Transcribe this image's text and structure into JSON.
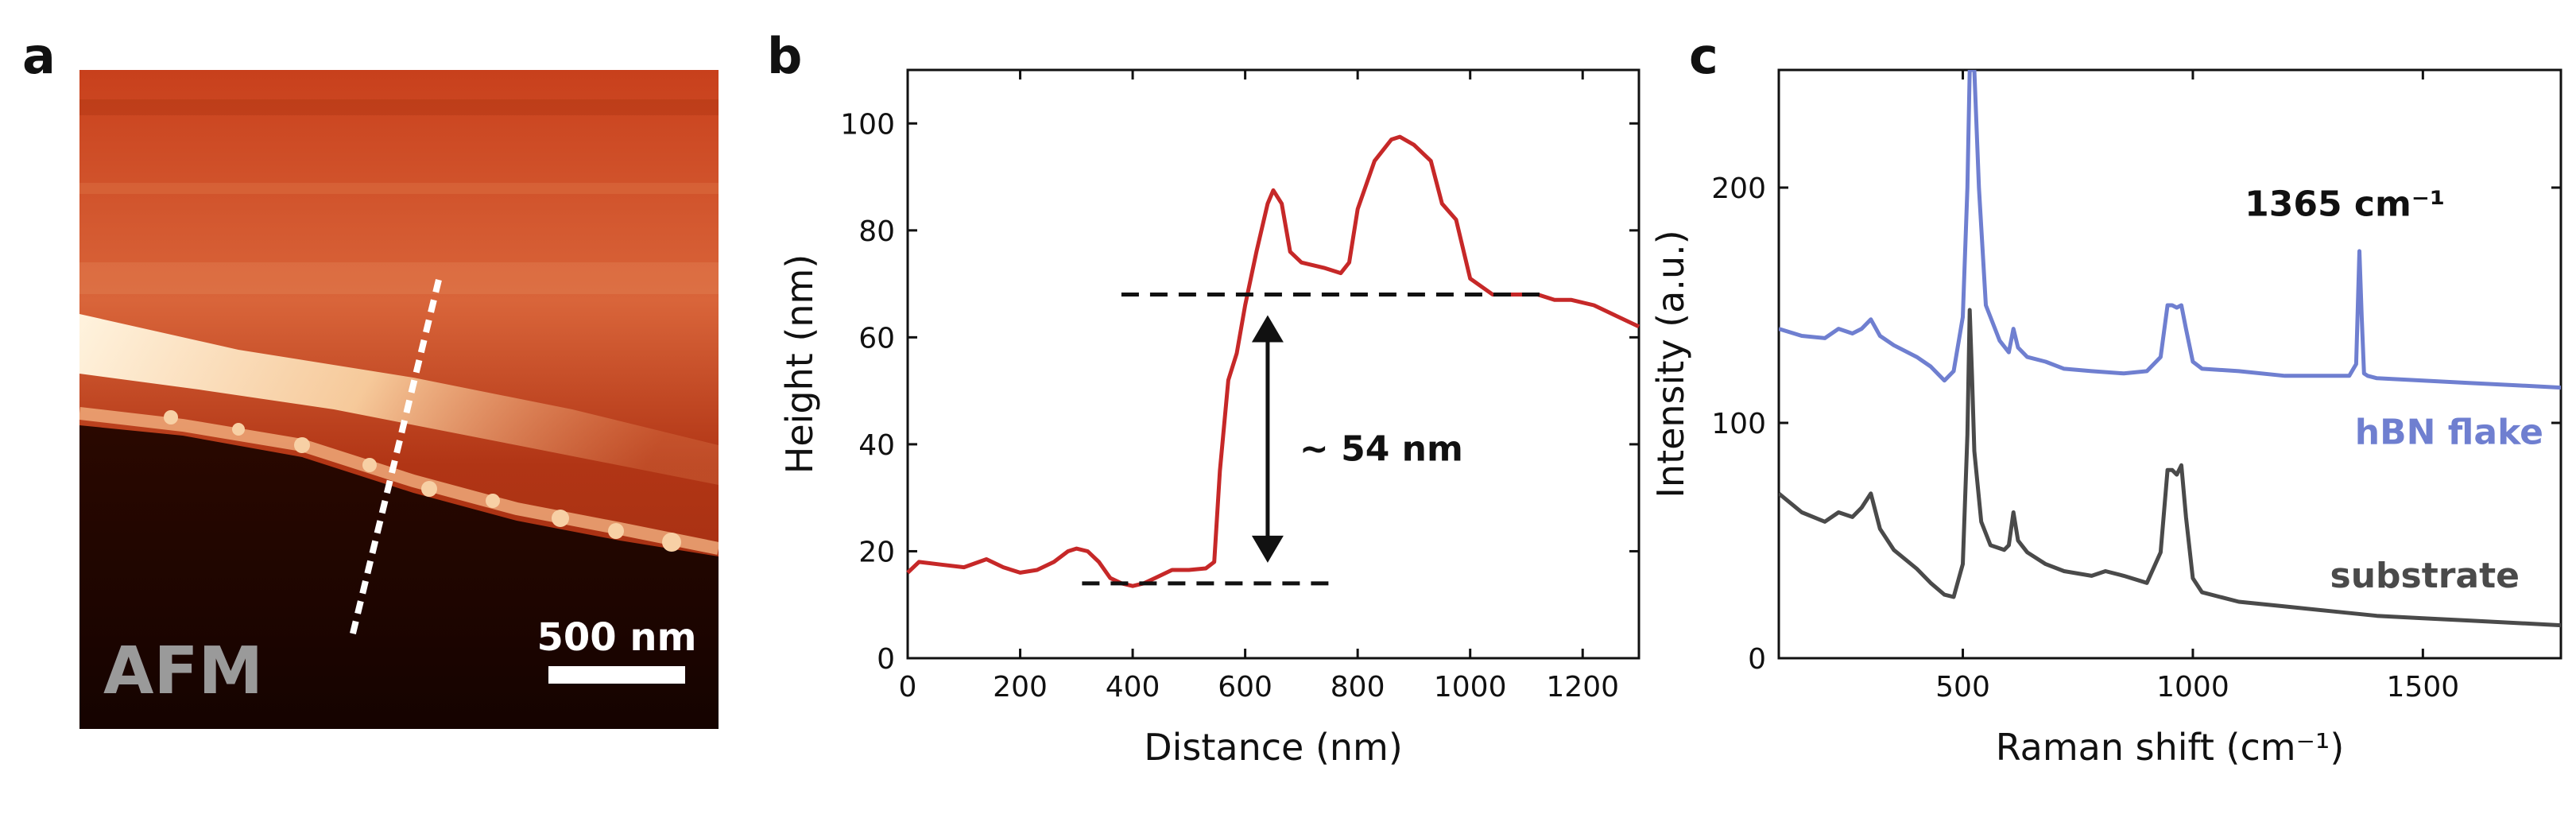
{
  "panels": {
    "a": {
      "label": "a",
      "image_label": "AFM",
      "scalebar_label": "500 nm"
    },
    "b": {
      "label": "b"
    },
    "c": {
      "label": "c"
    }
  },
  "colors": {
    "profile": "#c62828",
    "hbn": "#6f7fd0",
    "substrate": "#4a4a4a",
    "afm_dark": "#1a0500",
    "afm_orange": "#c0421a",
    "afm_light": "#fff0d8"
  },
  "chart_data": [
    {
      "type": "line",
      "panel": "b",
      "title": "",
      "xlabel": "Distance (nm)",
      "ylabel": "Height (nm)",
      "xlim": [
        0,
        1300
      ],
      "ylim": [
        0,
        110
      ],
      "xticks": [
        0,
        200,
        400,
        600,
        800,
        1000,
        1200
      ],
      "yticks": [
        0,
        20,
        40,
        60,
        80,
        100
      ],
      "grid": false,
      "series": [
        {
          "name": "height profile",
          "x": [
            0,
            20,
            60,
            100,
            140,
            170,
            200,
            230,
            260,
            285,
            300,
            320,
            340,
            360,
            380,
            400,
            420,
            440,
            470,
            500,
            530,
            545,
            555,
            570,
            585,
            600,
            620,
            640,
            650,
            665,
            680,
            700,
            740,
            770,
            785,
            800,
            830,
            860,
            875,
            900,
            930,
            950,
            975,
            1000,
            1040,
            1080,
            1120,
            1150,
            1180,
            1220,
            1260,
            1300
          ],
          "y": [
            16,
            18,
            17.5,
            17,
            18.5,
            17,
            16,
            16.5,
            18,
            20,
            20.5,
            20,
            18,
            15,
            14,
            13.5,
            14,
            15,
            16.5,
            16.5,
            16.8,
            18,
            35,
            52,
            57,
            66,
            76,
            85,
            87.5,
            85,
            76,
            74,
            73,
            72,
            74,
            84,
            93,
            97,
            97.5,
            96,
            93,
            85,
            82,
            71,
            68,
            68,
            68,
            67,
            67,
            66,
            64,
            62
          ]
        }
      ],
      "annotations": {
        "step_label": "~ 54 nm",
        "upper_level": 68,
        "lower_level": 14,
        "upper_x_range": [
          380,
          1130
        ],
        "lower_x_range": [
          310,
          760
        ],
        "arrow_x": 640
      }
    },
    {
      "type": "line",
      "panel": "c",
      "title": "",
      "xlabel": "Raman shift (cm⁻¹)",
      "ylabel": "Intensity (a.u.)",
      "xlim": [
        100,
        1800
      ],
      "ylim": [
        0,
        250
      ],
      "xticks": [
        500,
        1000,
        1500
      ],
      "yticks": [
        0,
        100,
        200
      ],
      "grid": false,
      "series": [
        {
          "name": "hBN flake",
          "x": [
            100,
            150,
            200,
            230,
            260,
            280,
            300,
            320,
            350,
            400,
            430,
            460,
            480,
            500,
            510,
            515,
            520,
            525,
            535,
            550,
            580,
            600,
            610,
            620,
            640,
            680,
            720,
            780,
            850,
            900,
            930,
            945,
            955,
            965,
            975,
            985,
            1000,
            1020,
            1100,
            1200,
            1300,
            1340,
            1355,
            1362,
            1367,
            1372,
            1380,
            1400,
            1500,
            1600,
            1700,
            1800
          ],
          "y": [
            140,
            137,
            136,
            140,
            138,
            140,
            144,
            137,
            133,
            128,
            124,
            118,
            122,
            145,
            200,
            250,
            250,
            250,
            200,
            150,
            135,
            130,
            140,
            132,
            128,
            126,
            123,
            122,
            121,
            122,
            128,
            150,
            150,
            149,
            150,
            140,
            126,
            123,
            122,
            120,
            120,
            120,
            125,
            173,
            145,
            121,
            120,
            119,
            118,
            117,
            116,
            115
          ]
        },
        {
          "name": "substrate",
          "x": [
            100,
            150,
            200,
            230,
            260,
            280,
            300,
            320,
            350,
            400,
            430,
            460,
            480,
            500,
            510,
            515,
            520,
            525,
            540,
            560,
            590,
            600,
            610,
            620,
            640,
            680,
            720,
            780,
            810,
            850,
            900,
            930,
            945,
            955,
            965,
            975,
            985,
            1000,
            1020,
            1100,
            1200,
            1300,
            1400,
            1500,
            1600,
            1700,
            1800
          ],
          "y": [
            70,
            62,
            58,
            62,
            60,
            64,
            70,
            55,
            46,
            38,
            32,
            27,
            26,
            40,
            95,
            148,
            120,
            88,
            58,
            48,
            46,
            48,
            62,
            50,
            45,
            40,
            37,
            35,
            37,
            35,
            32,
            45,
            80,
            80,
            78,
            82,
            60,
            34,
            28,
            24,
            22,
            20,
            18,
            17,
            16,
            15,
            14
          ]
        }
      ],
      "annotations": {
        "peak_label": "1365 cm⁻¹",
        "hbn_label": "hBN flake",
        "substrate_label": "substrate"
      }
    }
  ]
}
